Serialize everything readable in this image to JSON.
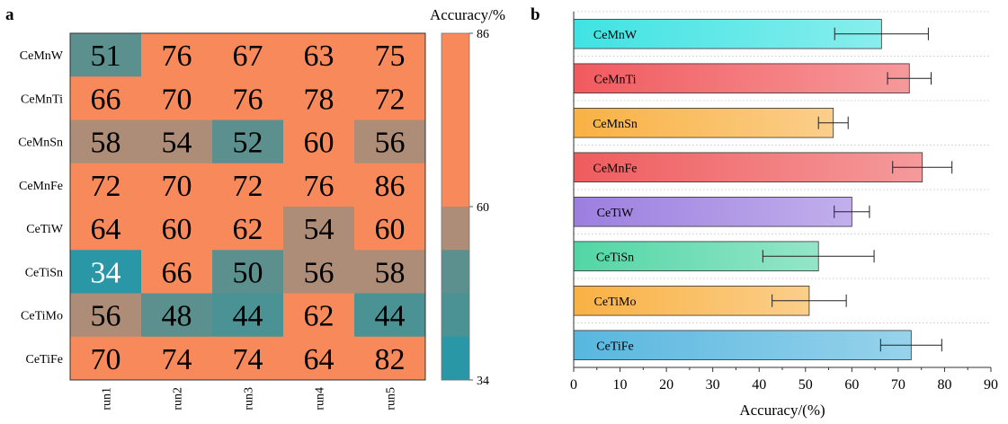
{
  "chart_data": [
    {
      "panel": "a",
      "type": "heatmap",
      "rows": [
        "CeMnW",
        "CeMnTi",
        "CeMnSn",
        "CeMnFe",
        "CeTiW",
        "CeTiSn",
        "CeTiMo",
        "CeTiFe"
      ],
      "columns": [
        "run1",
        "run2",
        "run3",
        "run4",
        "run5"
      ],
      "values": [
        [
          51,
          76,
          67,
          63,
          75
        ],
        [
          66,
          70,
          76,
          78,
          72
        ],
        [
          58,
          54,
          52,
          60,
          56
        ],
        [
          72,
          70,
          72,
          76,
          86
        ],
        [
          64,
          60,
          62,
          54,
          60
        ],
        [
          34,
          66,
          50,
          56,
          58
        ],
        [
          56,
          48,
          44,
          62,
          44
        ],
        [
          70,
          74,
          74,
          64,
          82
        ]
      ],
      "colorbar": {
        "title": "Accuracy/%",
        "min": 34,
        "max": 86,
        "tick_labels": [
          "86",
          "60",
          "34"
        ],
        "tick_values": [
          86,
          60,
          34
        ],
        "bins": [
          {
            "from": 60,
            "to": 86,
            "color": "#f7895a"
          },
          {
            "from": 53.5,
            "to": 60,
            "color": "#ad8d78"
          },
          {
            "from": 47,
            "to": 53.5,
            "color": "#5b908f"
          },
          {
            "from": 40.5,
            "to": 47,
            "color": "#4a9294"
          },
          {
            "from": 34,
            "to": 40.5,
            "color": "#2a97a7"
          }
        ]
      }
    },
    {
      "panel": "b",
      "type": "bar",
      "orientation": "horizontal",
      "categories": [
        "CeMnW",
        "CeMnTi",
        "CeMnSn",
        "CeMnFe",
        "CeTiW",
        "CeTiSn",
        "CeTiMo",
        "CeTiFe"
      ],
      "values": [
        66.4,
        72.4,
        56,
        75.2,
        60,
        52.8,
        50.8,
        72.8
      ],
      "errors": [
        10.1,
        4.7,
        3.2,
        6.4,
        3.8,
        12.0,
        8.0,
        6.6
      ],
      "colors": [
        "#3fe3e3",
        "#f15a5e",
        "#f9b143",
        "#ef5c5e",
        "#9c7ee0",
        "#52d6a6",
        "#f9b143",
        "#58b7df"
      ],
      "xlabel": "Accuracy/(%)",
      "xlim": [
        0,
        90
      ],
      "xticks": [
        "0",
        "10",
        "20",
        "30",
        "40",
        "50",
        "60",
        "70",
        "80",
        "90"
      ]
    }
  ],
  "panel_labels": {
    "a": "a",
    "b": "b"
  }
}
